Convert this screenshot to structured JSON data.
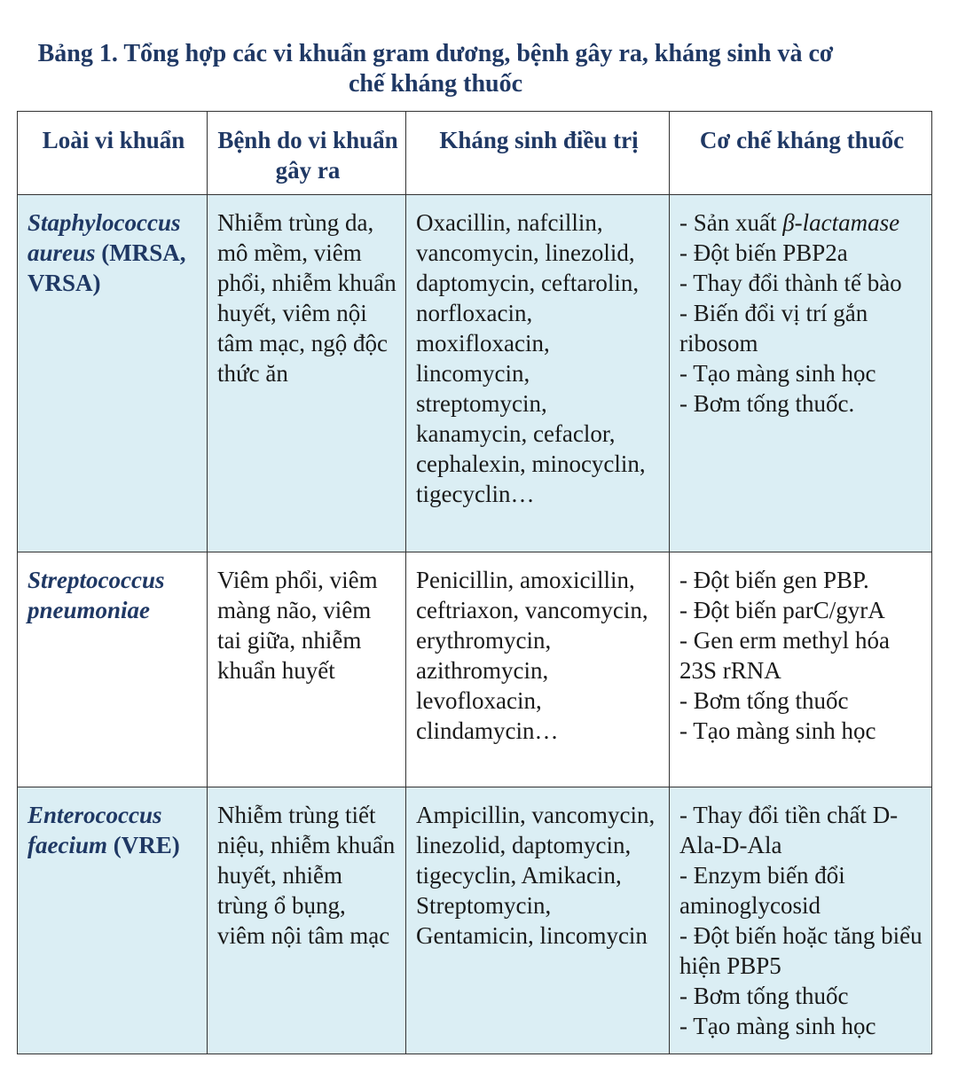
{
  "title": "Bảng 1. Tổng hợp các vi khuẩn gram dương, bệnh gây ra, kháng sinh và cơ chế kháng thuốc",
  "table": {
    "headers": [
      "Loài vi khuẩn",
      "Bệnh do vi khuẩn gây ra",
      "Kháng sinh điều trị",
      "Cơ chế kháng thuốc"
    ],
    "rows": [
      {
        "species": {
          "name": "Staphylococcus aureus",
          "note": "(MRSA, VRSA)"
        },
        "diseases": "Nhiễm trùng da, mô mềm, viêm phổi, nhiễm khuẩn huyết, viêm nội tâm mạc, ngộ độc thức ăn",
        "antibiotics": "Oxacillin, nafcillin, vancomycin, linezolid, daptomycin, ceftarolin, norfloxacin, moxifloxacin, lincomycin, streptomycin, kanamycin, cefaclor, cephalexin, minocyclin, tigecyclin…",
        "mechanisms": [
          {
            "text": "- Sản xuất",
            "italic": "β-lactamase"
          },
          "- Đột biến PBP2a",
          "- Thay đổi thành tế bào",
          "- Biến đổi vị trí gắn ribosom",
          "- Tạo màng sinh học",
          "- Bơm tống thuốc."
        ]
      },
      {
        "species": {
          "name": "Streptococcus pneumoniae"
        },
        "diseases": "Viêm phổi, viêm màng não, viêm tai giữa, nhiễm khuẩn huyết",
        "antibiotics": "Penicillin, amoxicillin, ceftriaxon, vancomycin, erythromycin, azithromycin, levofloxacin, clindamycin…",
        "mechanisms": [
          "- Đột biến gen PBP.",
          "- Đột biến parC/gyrA",
          "- Gen erm methyl hóa 23S rRNA",
          "- Bơm tống thuốc",
          "- Tạo màng sinh học"
        ]
      },
      {
        "species": {
          "name": "Enterococcus faecium",
          "note": "(VRE)"
        },
        "diseases": "Nhiễm trùng tiết niệu, nhiễm khuẩn huyết, nhiễm trùng ổ bụng, viêm nội tâm mạc",
        "antibiotics": "Ampicillin, vancomycin, linezolid, daptomycin, tigecyclin, Amikacin, Streptomycin, Gentamicin, lincomycin",
        "mechanisms": [
          "- Thay đổi tiền chất D-Ala-D-Ala",
          "- Enzym biến đổi aminoglycosid",
          "- Đột biến hoặc tăng biểu hiện PBP5",
          "- Bơm tống thuốc",
          "- Tạo màng sinh học"
        ]
      }
    ]
  }
}
